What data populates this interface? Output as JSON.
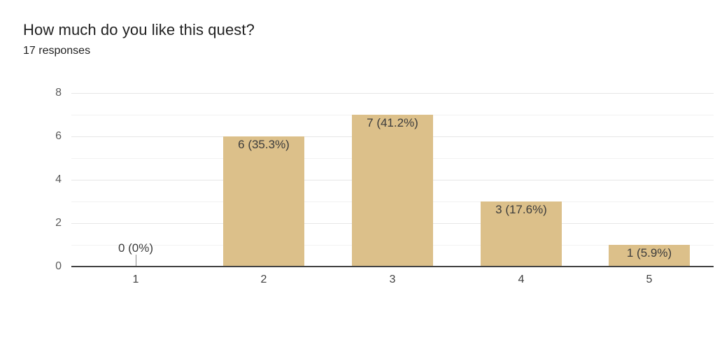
{
  "header": {
    "title": "How much do you like this quest?",
    "subtitle": "17 responses"
  },
  "chart_data": {
    "type": "bar",
    "title": "How much do you like this quest?",
    "subtitle": "17 responses",
    "categories": [
      "1",
      "2",
      "3",
      "4",
      "5"
    ],
    "values": [
      0,
      6,
      7,
      3,
      1
    ],
    "bar_labels": [
      "0 (0%)",
      "6 (35.3%)",
      "7 (41.2%)",
      "3 (17.6%)",
      "1 (5.9%)"
    ],
    "xlabel": "",
    "ylabel": "",
    "ylim": [
      0,
      8
    ],
    "yticks": [
      0,
      2,
      4,
      6,
      8
    ],
    "grid": "horizontal gridlines at every integer, minor lines between labeled ticks",
    "legend": "none",
    "colors": {
      "bar_fill": "#dcc08a",
      "annotation_text": "#3c3c3c",
      "axis_line": "#424242",
      "axis_text": "#3f3f3f"
    }
  }
}
